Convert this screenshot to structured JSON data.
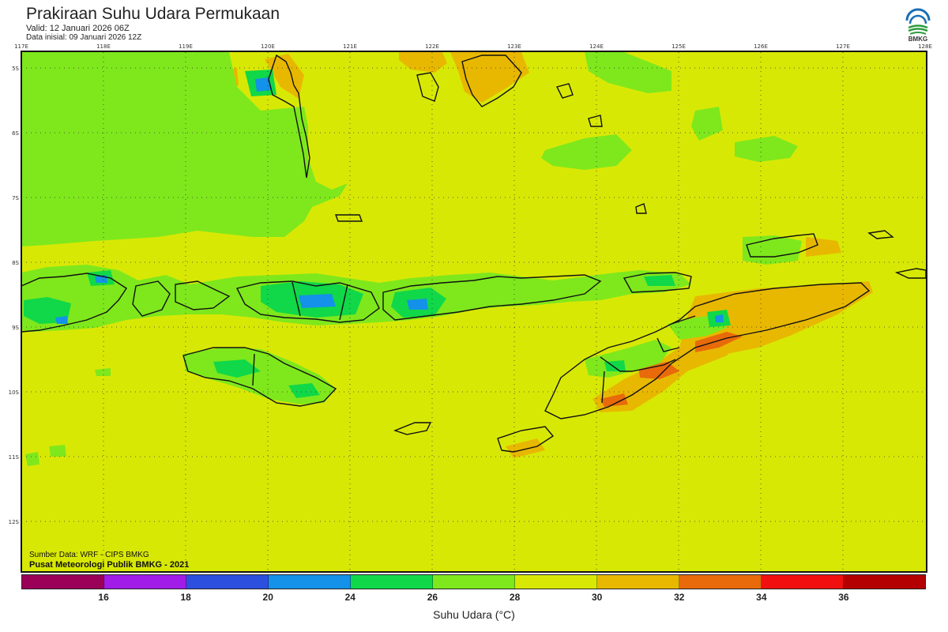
{
  "header": {
    "title": "Prakiraan Suhu Udara Permukaan",
    "valid": "Valid: 12 Januari 2026 06Z",
    "initial": "Data inisial: 09 Januari 2026 12Z"
  },
  "logo": {
    "text": "BMKG",
    "icon": "bmkg-logo-icon",
    "colors": [
      "#1b6fb5",
      "#2e9d3e"
    ]
  },
  "map": {
    "lon_labels": [
      "117E",
      "118E",
      "119E",
      "120E",
      "121E",
      "122E",
      "123E",
      "124E",
      "125E",
      "126E",
      "127E",
      "128E"
    ],
    "lat_labels": [
      "5S",
      "6S",
      "7S",
      "8S",
      "9S",
      "10S",
      "11S",
      "12S"
    ],
    "lon_range": [
      117,
      128
    ],
    "lat_range": [
      -4.8,
      -12.9
    ],
    "grid": "dotted",
    "background_color": "#d8e805"
  },
  "credits": {
    "source": "Sumber Data: WRF - CIPS BMKG",
    "center": "Pusat Meteorologi Publik BMKG - 2021"
  },
  "colorbar": {
    "colors": [
      "#9b0058",
      "#a11ce6",
      "#2d4fe0",
      "#1491e8",
      "#10d848",
      "#7ee81c",
      "#d8e805",
      "#e8b800",
      "#e86a0a",
      "#f01010",
      "#b40000"
    ],
    "labels": [
      "16",
      "18",
      "20",
      "24",
      "26",
      "28",
      "30",
      "32",
      "34",
      "36"
    ],
    "unit_label": "Suhu Udara (°C)"
  }
}
